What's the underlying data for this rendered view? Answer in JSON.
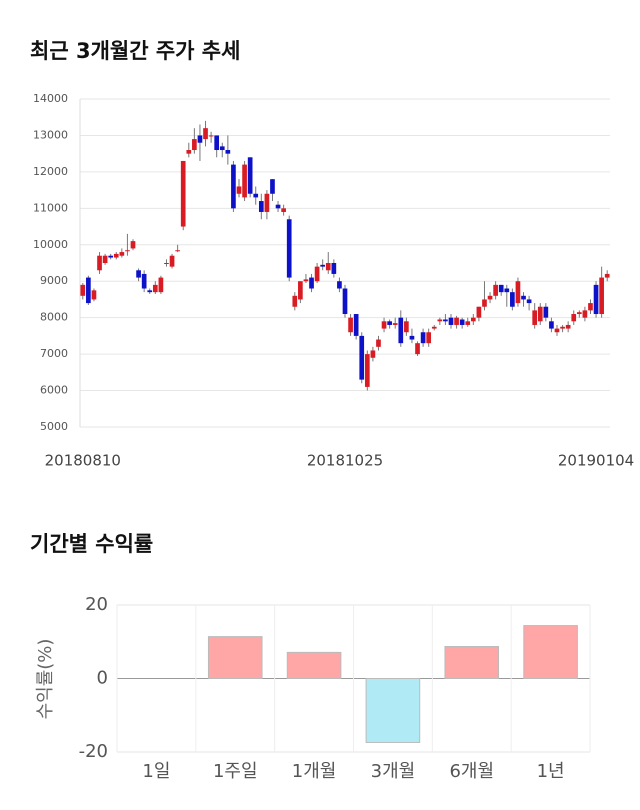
{
  "chart_data": [
    {
      "type": "candlestick",
      "title": "최근 3개월간 주가 추세",
      "up_color": "#d91c24",
      "down_color": "#0d12c8",
      "ylim": [
        5000,
        14000
      ],
      "yticks": [
        5000,
        6000,
        7000,
        8000,
        9000,
        10000,
        11000,
        12000,
        13000,
        14000
      ],
      "grid": true,
      "xticks": [
        {
          "value": 0,
          "label": "20180810"
        },
        {
          "value": 47,
          "label": "20181025"
        },
        {
          "value": 92,
          "label": "20190104"
        }
      ],
      "candles": [
        [
          8600,
          8900,
          8950,
          8500
        ],
        [
          9100,
          8400,
          9150,
          8350
        ],
        [
          8500,
          8750,
          8800,
          8450
        ],
        [
          9300,
          9700,
          9800,
          9200
        ],
        [
          9500,
          9700,
          9750,
          9450
        ],
        [
          9700,
          9650,
          9750,
          9600
        ],
        [
          9650,
          9750,
          9800,
          9600
        ],
        [
          9700,
          9800,
          9900,
          9650
        ],
        [
          9850,
          9850,
          10300,
          9700
        ],
        [
          9900,
          10100,
          10150,
          9850
        ],
        [
          9300,
          9100,
          9350,
          9000
        ],
        [
          9200,
          8800,
          9300,
          8700
        ],
        [
          8750,
          8700,
          8800,
          8650
        ],
        [
          8700,
          8900,
          9000,
          8650
        ],
        [
          8700,
          9100,
          9150,
          8650
        ],
        [
          9500,
          9500,
          9600,
          9400
        ],
        [
          9400,
          9700,
          9750,
          9350
        ],
        [
          9850,
          9850,
          10000,
          9800
        ],
        [
          10500,
          12300,
          12300,
          10400
        ],
        [
          12500,
          12600,
          12800,
          12400
        ],
        [
          12600,
          12900,
          13200,
          12500
        ],
        [
          13000,
          12800,
          13300,
          12300
        ],
        [
          12900,
          13200,
          13400,
          12700
        ],
        [
          13000,
          13000,
          13100,
          12800
        ],
        [
          13000,
          12600,
          13000,
          12400
        ],
        [
          12700,
          12600,
          12800,
          12400
        ],
        [
          12600,
          12500,
          13000,
          12200
        ],
        [
          12200,
          11000,
          12300,
          10900
        ],
        [
          11400,
          11600,
          11800,
          11300
        ],
        [
          11300,
          12200,
          12300,
          11200
        ],
        [
          12400,
          11400,
          12400,
          11300
        ],
        [
          11400,
          11300,
          11600,
          11100
        ],
        [
          11200,
          10900,
          11400,
          10700
        ],
        [
          10900,
          11400,
          11500,
          10700
        ],
        [
          11800,
          11400,
          11800,
          11200
        ],
        [
          11100,
          11000,
          11200,
          10900
        ],
        [
          10900,
          11000,
          11100,
          10800
        ],
        [
          10700,
          9100,
          10800,
          9000
        ],
        [
          8300,
          8600,
          8700,
          8200
        ],
        [
          8500,
          9000,
          9000,
          8400
        ],
        [
          9000,
          9050,
          9200,
          8950
        ],
        [
          9100,
          8800,
          9200,
          8700
        ],
        [
          9000,
          9400,
          9500,
          8950
        ],
        [
          9450,
          9400,
          9600,
          9300
        ],
        [
          9300,
          9500,
          9800,
          9200
        ],
        [
          9500,
          9200,
          9600,
          9100
        ],
        [
          9000,
          8800,
          9100,
          8700
        ],
        [
          8800,
          8100,
          8900,
          8000
        ],
        [
          7600,
          8000,
          8100,
          7500
        ],
        [
          8100,
          7500,
          8100,
          7400
        ],
        [
          7500,
          6300,
          7600,
          6200
        ],
        [
          6100,
          7000,
          7100,
          6000
        ],
        [
          6900,
          7100,
          7200,
          6800
        ],
        [
          7200,
          7400,
          7500,
          7100
        ],
        [
          7700,
          7900,
          8000,
          7600
        ],
        [
          7900,
          7800,
          7950,
          7700
        ],
        [
          7800,
          7850,
          8000,
          7700
        ],
        [
          8000,
          7300,
          8200,
          7200
        ],
        [
          7600,
          7900,
          8000,
          7500
        ],
        [
          7500,
          7400,
          7700,
          7300
        ],
        [
          7000,
          7300,
          7350,
          6950
        ],
        [
          7600,
          7300,
          7700,
          7200
        ],
        [
          7300,
          7600,
          7700,
          7200
        ],
        [
          7700,
          7750,
          7800,
          7650
        ],
        [
          7900,
          7950,
          8000,
          7800
        ],
        [
          7950,
          7900,
          8100,
          7800
        ],
        [
          8000,
          7800,
          8100,
          7700
        ],
        [
          7800,
          8000,
          8050,
          7700
        ],
        [
          7950,
          7800,
          8000,
          7700
        ],
        [
          7800,
          7900,
          8000,
          7750
        ],
        [
          7900,
          8000,
          8100,
          7800
        ],
        [
          8000,
          8300,
          8300,
          7900
        ],
        [
          8300,
          8500,
          9000,
          8200
        ],
        [
          8500,
          8600,
          8700,
          8400
        ],
        [
          8600,
          8900,
          9000,
          8500
        ],
        [
          8900,
          8700,
          8900,
          8600
        ],
        [
          8800,
          8700,
          8900,
          8300
        ],
        [
          8700,
          8300,
          8800,
          8200
        ],
        [
          8400,
          9000,
          9100,
          8300
        ],
        [
          8600,
          8500,
          8700,
          8300
        ],
        [
          8500,
          8400,
          8600,
          8200
        ],
        [
          7800,
          8200,
          8400,
          7700
        ],
        [
          7900,
          8300,
          8400,
          7800
        ],
        [
          8300,
          8000,
          8400,
          7900
        ],
        [
          7900,
          7700,
          8000,
          7600
        ],
        [
          7600,
          7700,
          7800,
          7500
        ],
        [
          7700,
          7750,
          7800,
          7600
        ],
        [
          7700,
          7800,
          7900,
          7600
        ],
        [
          7900,
          8100,
          8200,
          7800
        ],
        [
          8100,
          8150,
          8200,
          8000
        ],
        [
          8000,
          8200,
          8300,
          7900
        ],
        [
          8200,
          8400,
          8500,
          8100
        ],
        [
          8900,
          8100,
          9000,
          8000
        ],
        [
          8100,
          9100,
          9400,
          8000
        ],
        [
          9100,
          9200,
          9300,
          9000
        ]
      ]
    },
    {
      "type": "bar",
      "title": "기간별 수익률",
      "y_label": "수익률(%)",
      "categories": [
        "1일",
        "1주일",
        "1개월",
        "3개월",
        "6개월",
        "1년"
      ],
      "values": [
        0,
        11.4,
        7.1,
        -17.4,
        8.7,
        14.4
      ],
      "positive_color": "#ffa6a6",
      "negative_color": "#b0ebf5",
      "ylim": [
        -20,
        20
      ],
      "yticks": [
        -20,
        0,
        20
      ],
      "grid": true
    }
  ]
}
